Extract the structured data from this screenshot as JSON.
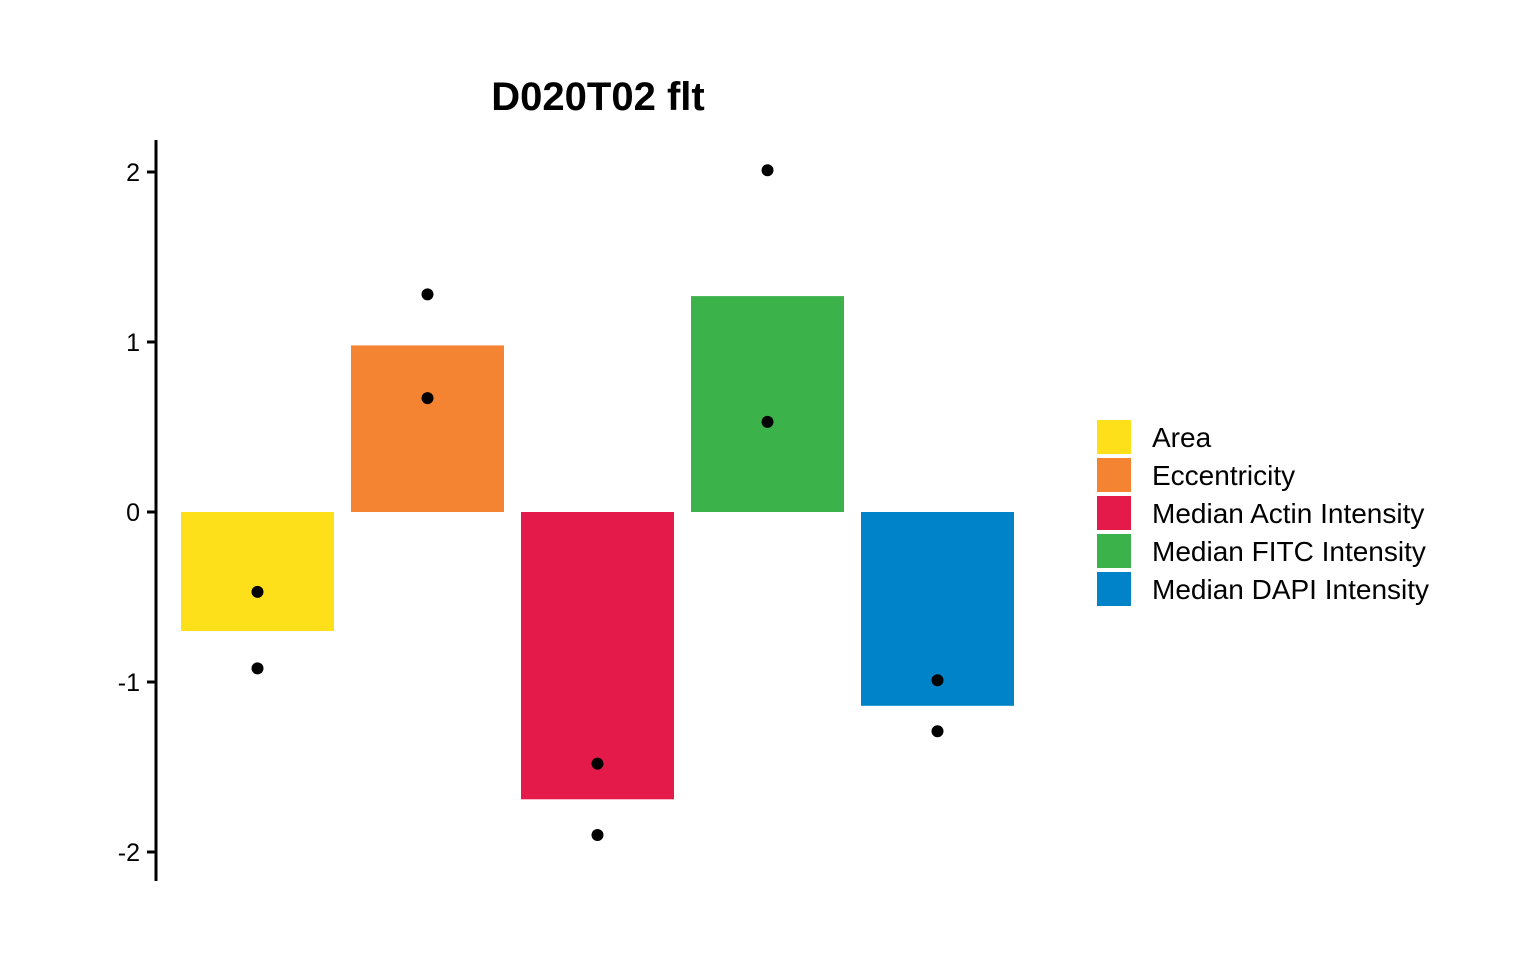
{
  "chart_data": {
    "type": "bar",
    "title": "D020T02 flt",
    "xlabel": "",
    "ylabel": "",
    "ylim": [
      -2.2,
      2.2
    ],
    "yticks": [
      {
        "value": 2,
        "label": "2"
      },
      {
        "value": 1,
        "label": "1"
      },
      {
        "value": 0,
        "label": "0"
      },
      {
        "value": -1,
        "label": "-1"
      },
      {
        "value": -2,
        "label": "-2"
      }
    ],
    "grid": false,
    "legend_position": "right",
    "categories": [
      "Area",
      "Eccentricity",
      "Median Actin Intensity",
      "Median FITC Intensity",
      "Median DAPI Intensity"
    ],
    "values": [
      -0.7,
      0.98,
      -1.69,
      1.27,
      -1.14
    ],
    "colors": [
      "#FDE01A",
      "#F58432",
      "#E41A4A",
      "#3CB34A",
      "#0083C8"
    ],
    "points": [
      [
        -0.47,
        -0.92
      ],
      [
        1.28,
        0.67
      ],
      [
        -1.48,
        -1.9
      ],
      [
        2.01,
        0.53
      ],
      [
        -0.99,
        -1.29
      ]
    ]
  }
}
